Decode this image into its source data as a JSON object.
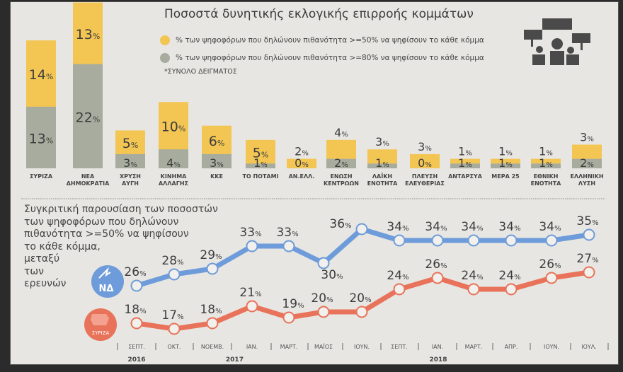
{
  "title": "Ποσοστά δυνητικής εκλογικής επιρροής κομμάτων",
  "legend": [
    {
      "label": "% των ψηφοφόρων που δηλώνουν πιθανότητα >=50% να ψηφίσουν το κάθε κόμμα",
      "color": "#f3c654"
    },
    {
      "label": "% των ψηφοφόρων που δηλώνουν πιθανότητα >=80% να ψηφίσουν το κάθε κόμμα",
      "color": "#a8ac9f"
    }
  ],
  "note": "*ΣΥΝΟΛΟ ΔΕΙΓΜΑΤΟΣ",
  "icons": {
    "top_right": "protest-crowd-icon",
    "nd_logo": "nd-torch-logo-icon",
    "syriza_logo": "syriza-logo-icon"
  },
  "line_title": [
    "Συγκριτική παρουσίαση  των ποσοστών",
    "των ψηφοφόρων που δηλώνουν",
    "πιθανότητα >=50% να ψηφίσουν",
    "το κάθε κόμμα,",
    "μεταξύ",
    "των",
    "ερευνών"
  ],
  "nd_logo_text": "ΝΔ",
  "syriza_logo_text": "ΣΥΡΙΖΑ",
  "chart_data": [
    {
      "type": "bar",
      "stacked": true,
      "categories": [
        [
          "ΣΥΡΙΖΑ"
        ],
        [
          "ΝΕΑ",
          "ΔΗΜΟΚΡΑΤΙΑ"
        ],
        [
          "ΧΡΥΣΗ",
          "ΑΥΓΗ"
        ],
        [
          "ΚΙΝΗΜΑ",
          "ΑΛΛΑΓΗΣ"
        ],
        [
          "ΚΚΕ"
        ],
        [
          "ΤΟ ΠΟΤΑΜΙ"
        ],
        [
          "ΑΝ.ΕΛΛ."
        ],
        [
          "ΕΝΩΣΗ",
          "ΚΕΝΤΡΩΩΝ"
        ],
        [
          "ΛΑΪΚΗ",
          "ΕΝΟΤΗΤΑ"
        ],
        [
          "ΠΛΕΥΣΗ",
          "ΕΛΕΥΘΕΡΙΑΣ"
        ],
        [
          "ΑΝΤΑΡΣΥΑ"
        ],
        [
          "ΜΕΡΑ 25"
        ],
        [
          "ΕΘΝΙΚΗ",
          "ΕΝΟΤΗΤΑ"
        ],
        [
          "ΕΛΛΗΝΙΚΗ",
          "ΛΥΣΗ"
        ]
      ],
      "series": [
        {
          "color": "#a8ac9f",
          "values": [
            13,
            22,
            3,
            4,
            3,
            1,
            0,
            2,
            1,
            0,
            1,
            1,
            1,
            2
          ]
        },
        {
          "color": "#f3c654",
          "values": [
            14,
            13,
            5,
            10,
            6,
            5,
            2,
            4,
            3,
            3,
            1,
            1,
            1,
            3
          ]
        }
      ],
      "unit": "%"
    },
    {
      "type": "line",
      "categories": [
        "ΣΕΠΤ.",
        "ΟΚΤ.",
        "ΝΟΕΜΒ.",
        "ΙΑΝ.",
        "ΜΑΡΤ.",
        "ΜΑΪΟΣ",
        "ΙΟΥΝ.",
        "ΣΕΠΤ.",
        "ΙΑΝ.",
        "ΜΑΡΤ.",
        "ΑΠΡ.",
        "ΙΟΥΝ.",
        "ΙΟΥΛ."
      ],
      "years": [
        {
          "label": "2016",
          "at": 0
        },
        {
          "label": "2017",
          "at": 2.6
        },
        {
          "label": "2018",
          "at": 8
        }
      ],
      "series": [
        {
          "name": "ΝΔ",
          "color": "#6e9bd9",
          "values": [
            26,
            28,
            29,
            33,
            33,
            30,
            36,
            34,
            34,
            34,
            34,
            34,
            35
          ]
        },
        {
          "name": "ΣΥΡΙΖΑ",
          "color": "#e8735a",
          "values": [
            18,
            17,
            18,
            21,
            19,
            20,
            20,
            24,
            26,
            24,
            24,
            26,
            27
          ]
        }
      ],
      "unit": "%"
    }
  ]
}
